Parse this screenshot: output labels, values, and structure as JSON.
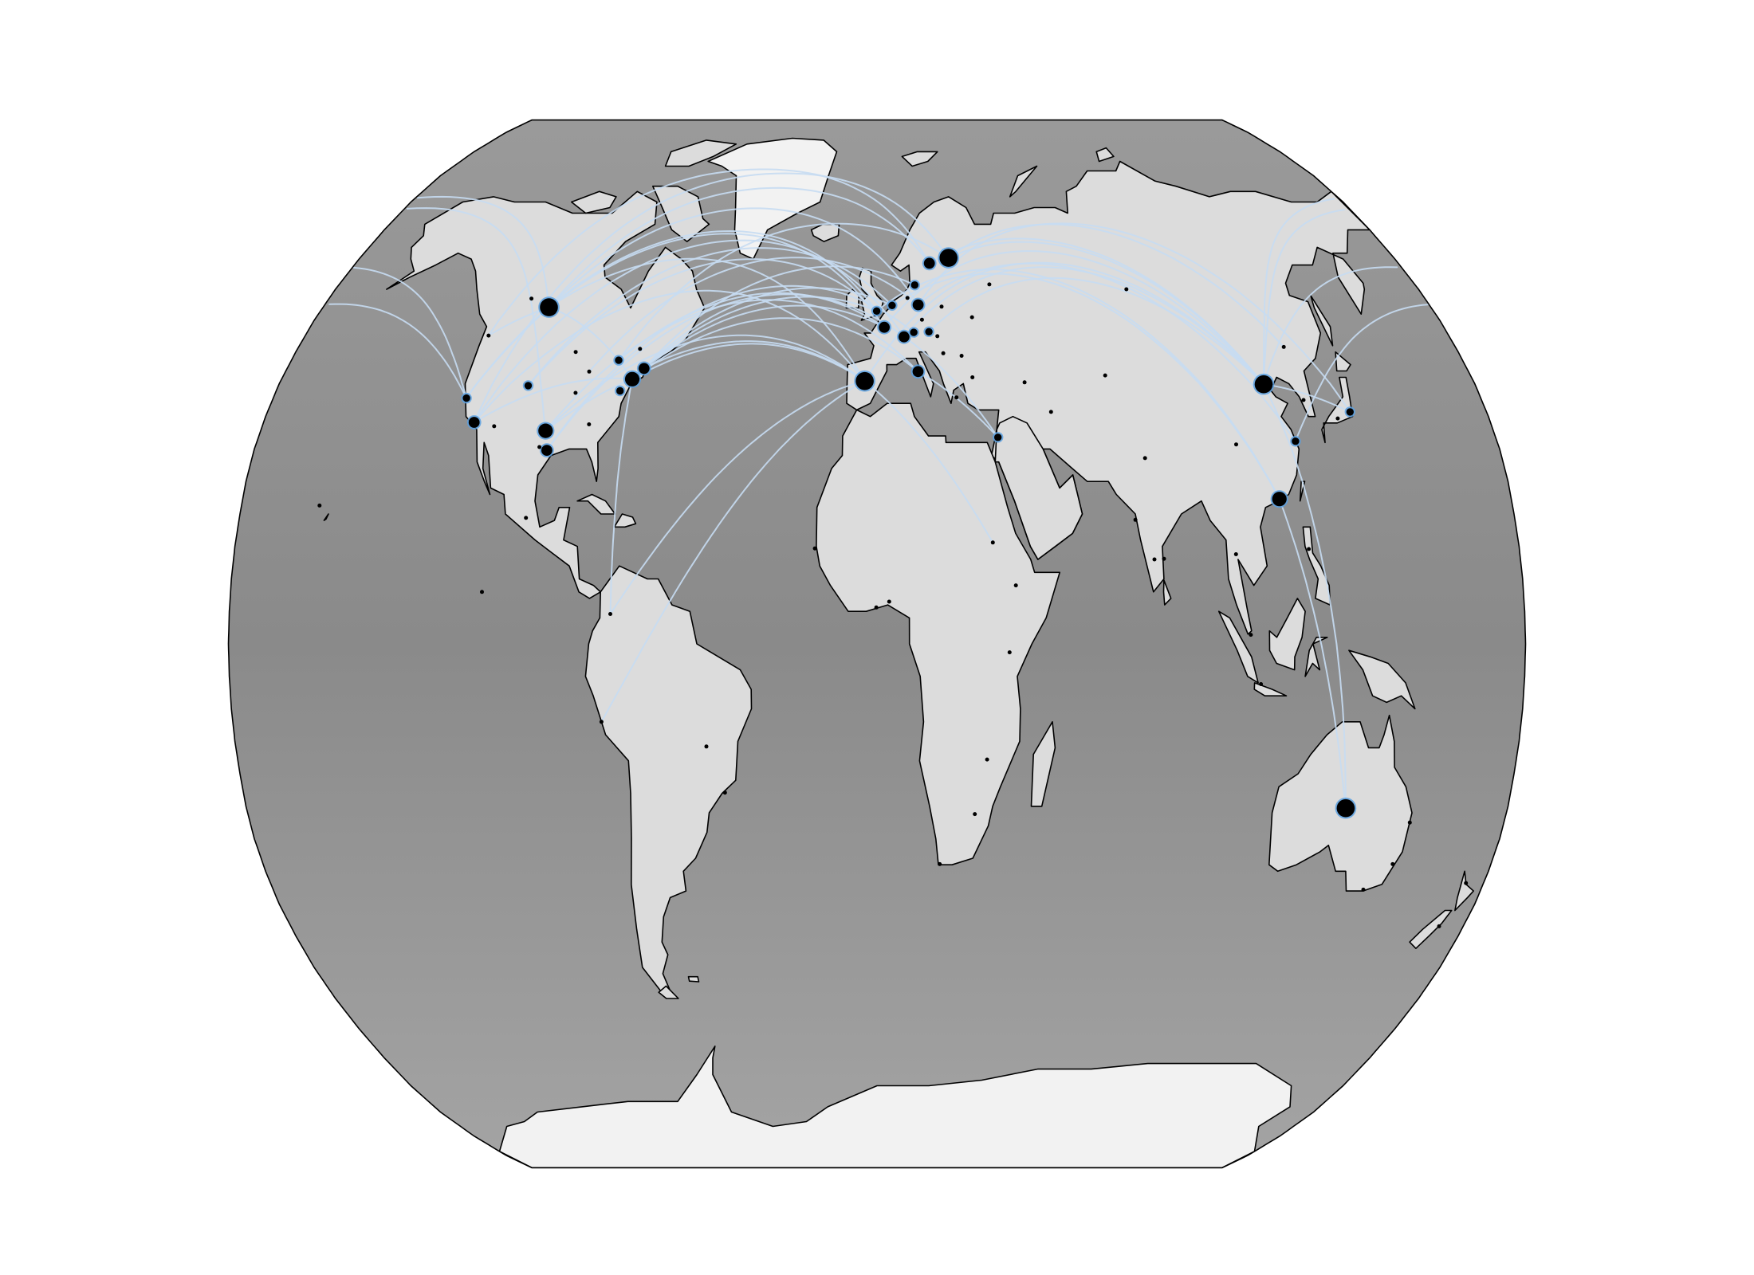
{
  "figure": {
    "projection": "Robinson",
    "background": "#ffffff",
    "ocean_color": "#8e8e8e",
    "land_color": "#dcdcdc",
    "ice_color": "#f2f2f2",
    "coastline_color": "#000000",
    "route_color": "#c6dcf2",
    "site_color": "#000000",
    "site_halo_color": "#5aa0e0"
  },
  "chart_data": {
    "type": "map",
    "title": "",
    "legend": false,
    "sites": [
      {
        "lon": -87.6,
        "lat": 41.9,
        "weight": 1
      },
      {
        "lon": -104.9,
        "lat": 39.7,
        "weight": 2
      },
      {
        "lon": -122.4,
        "lat": 37.8,
        "weight": 2
      },
      {
        "lon": -118.2,
        "lat": 34.1,
        "weight": 3
      },
      {
        "lon": -122.3,
        "lat": 47.6,
        "weight": 1
      },
      {
        "lon": -96.8,
        "lat": 32.8,
        "weight": 4
      },
      {
        "lon": -95.4,
        "lat": 29.8,
        "weight": 3
      },
      {
        "lon": -71.1,
        "lat": 42.4,
        "weight": 3
      },
      {
        "lon": -74.0,
        "lat": 40.7,
        "weight": 4
      },
      {
        "lon": -77.0,
        "lat": 38.9,
        "weight": 2
      },
      {
        "lon": -79.4,
        "lat": 43.7,
        "weight": 2
      },
      {
        "lon": -73.6,
        "lat": 45.5,
        "weight": 1
      },
      {
        "lon": -84.4,
        "lat": 33.8,
        "weight": 1
      },
      {
        "lon": -97.7,
        "lat": 30.3,
        "weight": 1
      },
      {
        "lon": -90.2,
        "lat": 38.6,
        "weight": 1
      },
      {
        "lon": -93.3,
        "lat": 45.0,
        "weight": 1
      },
      {
        "lon": -106.6,
        "lat": 52.1,
        "weight": 5
      },
      {
        "lon": -113.5,
        "lat": 53.5,
        "weight": 1
      },
      {
        "lon": -112.1,
        "lat": 33.5,
        "weight": 1
      },
      {
        "lon": -157.9,
        "lat": 21.3,
        "weight": 1
      },
      {
        "lon": -99.1,
        "lat": 19.4,
        "weight": 1
      },
      {
        "lon": -110.0,
        "lat": 8.0,
        "weight": 1
      },
      {
        "lon": -74.1,
        "lat": 4.6,
        "weight": 1
      },
      {
        "lon": -77.0,
        "lat": -12.0,
        "weight": 1
      },
      {
        "lon": -47.9,
        "lat": -15.8,
        "weight": 1
      },
      {
        "lon": -43.2,
        "lat": -22.9,
        "weight": 1
      },
      {
        "lon": -3.7,
        "lat": 40.4,
        "weight": 5
      },
      {
        "lon": 2.3,
        "lat": 48.9,
        "weight": 3
      },
      {
        "lon": -0.1,
        "lat": 51.5,
        "weight": 2
      },
      {
        "lon": 4.9,
        "lat": 52.4,
        "weight": 2
      },
      {
        "lon": 8.5,
        "lat": 47.4,
        "weight": 3
      },
      {
        "lon": 13.4,
        "lat": 52.5,
        "weight": 3
      },
      {
        "lon": 12.5,
        "lat": 41.9,
        "weight": 3
      },
      {
        "lon": 11.6,
        "lat": 48.1,
        "weight": 2
      },
      {
        "lon": 10.0,
        "lat": 53.6,
        "weight": 1
      },
      {
        "lon": 18.1,
        "lat": 59.3,
        "weight": 3
      },
      {
        "lon": 24.9,
        "lat": 60.2,
        "weight": 5
      },
      {
        "lon": 12.6,
        "lat": 55.7,
        "weight": 2
      },
      {
        "lon": 21.0,
        "lat": 52.2,
        "weight": 1
      },
      {
        "lon": 16.4,
        "lat": 48.2,
        "weight": 2
      },
      {
        "lon": 19.0,
        "lat": 47.5,
        "weight": 1
      },
      {
        "lon": 14.4,
        "lat": 50.1,
        "weight": 1
      },
      {
        "lon": 23.7,
        "lat": 37.9,
        "weight": 1
      },
      {
        "lon": 28.9,
        "lat": 41.0,
        "weight": 1
      },
      {
        "lon": 30.5,
        "lat": 50.5,
        "weight": 1
      },
      {
        "lon": 37.6,
        "lat": 55.8,
        "weight": 1
      },
      {
        "lon": 26.1,
        "lat": 44.4,
        "weight": 1
      },
      {
        "lon": 20.5,
        "lat": 44.8,
        "weight": 1
      },
      {
        "lon": 35.2,
        "lat": 31.8,
        "weight": 2
      },
      {
        "lon": 32.5,
        "lat": 15.6,
        "weight": 1
      },
      {
        "lon": 38.7,
        "lat": 9.0,
        "weight": 1
      },
      {
        "lon": 36.8,
        "lat": -1.3,
        "weight": 1
      },
      {
        "lon": 28.0,
        "lat": -26.2,
        "weight": 1
      },
      {
        "lon": 18.4,
        "lat": -33.9,
        "weight": 1
      },
      {
        "lon": 31.0,
        "lat": -17.8,
        "weight": 1
      },
      {
        "lon": 3.4,
        "lat": 6.5,
        "weight": 1
      },
      {
        "lon": -17.4,
        "lat": 14.7,
        "weight": 1
      },
      {
        "lon": -0.2,
        "lat": 5.6,
        "weight": 1
      },
      {
        "lon": 51.4,
        "lat": 35.7,
        "weight": 1
      },
      {
        "lon": 44.5,
        "lat": 40.2,
        "weight": 1
      },
      {
        "lon": 69.2,
        "lat": 41.3,
        "weight": 1
      },
      {
        "lon": 77.2,
        "lat": 28.6,
        "weight": 1
      },
      {
        "lon": 72.9,
        "lat": 19.1,
        "weight": 1
      },
      {
        "lon": 80.3,
        "lat": 13.1,
        "weight": 1
      },
      {
        "lon": 77.6,
        "lat": 13.0,
        "weight": 1
      },
      {
        "lon": 82.9,
        "lat": 55.0,
        "weight": 1
      },
      {
        "lon": 104.1,
        "lat": 30.7,
        "weight": 1
      },
      {
        "lon": 116.4,
        "lat": 39.9,
        "weight": 5
      },
      {
        "lon": 121.5,
        "lat": 31.2,
        "weight": 2
      },
      {
        "lon": 114.2,
        "lat": 22.3,
        "weight": 4
      },
      {
        "lon": 126.6,
        "lat": 45.8,
        "weight": 1
      },
      {
        "lon": 139.7,
        "lat": 35.7,
        "weight": 2
      },
      {
        "lon": 135.5,
        "lat": 34.7,
        "weight": 1
      },
      {
        "lon": 127.0,
        "lat": 37.5,
        "weight": 1
      },
      {
        "lon": 103.8,
        "lat": 1.4,
        "weight": 1
      },
      {
        "lon": 100.5,
        "lat": 13.8,
        "weight": 1
      },
      {
        "lon": 106.8,
        "lat": -6.2,
        "weight": 1
      },
      {
        "lon": 121.0,
        "lat": 14.6,
        "weight": 1
      },
      {
        "lon": 133.8,
        "lat": -25.3,
        "weight": 5
      },
      {
        "lon": 151.2,
        "lat": -33.9,
        "weight": 1
      },
      {
        "lon": 145.0,
        "lat": -37.8,
        "weight": 1
      },
      {
        "lon": 153.0,
        "lat": -27.5,
        "weight": 1
      },
      {
        "lon": 174.8,
        "lat": -36.8,
        "weight": 1
      },
      {
        "lon": 172.6,
        "lat": -43.5,
        "weight": 1
      }
    ],
    "routes": [
      [
        -3.7,
        40.4,
        -106.6,
        52.1
      ],
      [
        -3.7,
        40.4,
        -74.0,
        40.7
      ],
      [
        -3.7,
        40.4,
        -118.2,
        34.1
      ],
      [
        -3.7,
        40.4,
        -96.8,
        32.8
      ],
      [
        -3.7,
        40.4,
        -74.1,
        4.6
      ],
      [
        -3.7,
        40.4,
        -77.0,
        -12.0
      ],
      [
        -3.7,
        40.4,
        116.4,
        39.9
      ],
      [
        -3.7,
        40.4,
        32.5,
        15.6
      ],
      [
        -3.7,
        40.4,
        -71.1,
        42.4
      ],
      [
        2.3,
        48.9,
        -74.0,
        40.7
      ],
      [
        2.3,
        48.9,
        -122.4,
        37.8
      ],
      [
        2.3,
        48.9,
        116.4,
        39.9
      ],
      [
        2.3,
        48.9,
        -79.4,
        43.7
      ],
      [
        -0.1,
        51.5,
        -71.1,
        42.4
      ],
      [
        -0.1,
        51.5,
        -122.4,
        37.8
      ],
      [
        -0.1,
        51.5,
        114.2,
        22.3
      ],
      [
        -0.1,
        51.5,
        -104.9,
        39.7
      ],
      [
        8.5,
        47.4,
        -95.4,
        29.8
      ],
      [
        8.5,
        47.4,
        116.4,
        39.9
      ],
      [
        8.5,
        47.4,
        -118.2,
        34.1
      ],
      [
        8.5,
        47.4,
        35.2,
        31.8
      ],
      [
        13.4,
        52.5,
        -87.6,
        41.9
      ],
      [
        13.4,
        52.5,
        121.5,
        31.2
      ],
      [
        13.4,
        52.5,
        -106.6,
        52.1
      ],
      [
        13.4,
        52.5,
        139.7,
        35.7
      ],
      [
        12.5,
        41.9,
        35.2,
        31.8
      ],
      [
        12.5,
        41.9,
        -74.0,
        40.7
      ],
      [
        12.5,
        41.9,
        -96.8,
        32.8
      ],
      [
        18.1,
        59.3,
        -106.6,
        52.1
      ],
      [
        18.1,
        59.3,
        116.4,
        39.9
      ],
      [
        18.1,
        59.3,
        -122.3,
        47.6
      ],
      [
        24.9,
        60.2,
        116.4,
        39.9
      ],
      [
        24.9,
        60.2,
        -118.2,
        34.1
      ],
      [
        24.9,
        60.2,
        126.6,
        45.8
      ],
      [
        24.9,
        60.2,
        -79.4,
        43.7
      ],
      [
        4.9,
        52.4,
        -74.0,
        40.7
      ],
      [
        4.9,
        52.4,
        114.2,
        22.3
      ],
      [
        4.9,
        52.4,
        -104.9,
        39.7
      ],
      [
        11.6,
        48.1,
        -95.4,
        29.8
      ],
      [
        16.4,
        48.2,
        116.4,
        39.9
      ],
      [
        12.6,
        55.7,
        -71.1,
        42.4
      ],
      [
        116.4,
        39.9,
        133.8,
        -25.3
      ],
      [
        116.4,
        39.9,
        -122.4,
        37.8
      ],
      [
        116.4,
        39.9,
        -106.6,
        52.1
      ],
      [
        116.4,
        39.9,
        139.7,
        35.7
      ],
      [
        116.4,
        39.9,
        -96.8,
        32.8
      ],
      [
        121.5,
        31.2,
        -122.4,
        37.8
      ],
      [
        114.2,
        22.3,
        133.8,
        -25.3
      ],
      [
        -106.6,
        52.1,
        -74.0,
        40.7
      ],
      [
        -106.6,
        52.1,
        -122.3,
        47.6
      ],
      [
        -96.8,
        32.8,
        -74.0,
        40.7
      ],
      [
        -74.0,
        40.7,
        -74.1,
        4.6
      ],
      [
        -118.2,
        34.1,
        -74.0,
        40.7
      ]
    ]
  }
}
